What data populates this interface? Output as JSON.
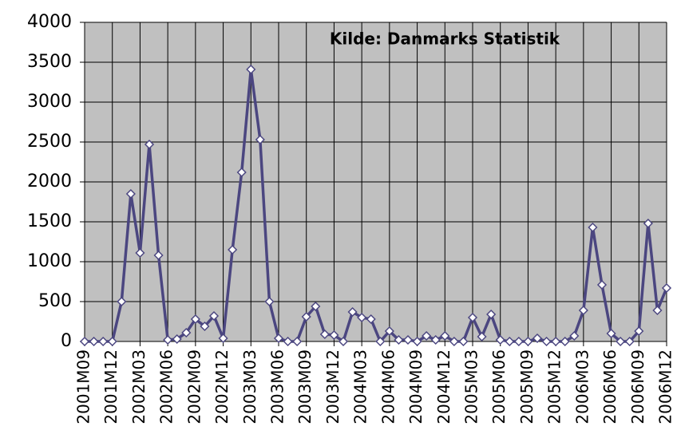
{
  "chart_data": {
    "type": "line",
    "annotation": "Kilde: Danmarks Statistik",
    "categories": [
      "2001M09",
      null,
      null,
      "2001M12",
      null,
      null,
      "2002M03",
      null,
      null,
      "2002M06",
      null,
      null,
      "2002M09",
      null,
      null,
      "2002M12",
      null,
      null,
      "2003M03",
      null,
      null,
      "2003M06",
      null,
      null,
      "2003M09",
      null,
      null,
      "2003M12",
      null,
      null,
      "2004M03",
      null,
      null,
      "2004M06",
      null,
      null,
      "2004M09",
      null,
      null,
      "2004M12",
      null,
      null,
      "2005M03",
      null,
      null,
      "2005M06",
      null,
      null,
      "2005M09",
      null,
      null,
      "2005M12",
      null,
      null,
      "2006M03",
      null,
      null,
      "2006M06",
      null,
      null,
      "2006M09",
      null,
      null,
      "2006M12"
    ],
    "series": [
      {
        "name": null,
        "color": "#4b4680",
        "values": [
          0,
          0,
          0,
          0,
          500,
          1850,
          1110,
          2470,
          1080,
          20,
          30,
          110,
          280,
          190,
          320,
          40,
          1150,
          2120,
          3410,
          2530,
          500,
          40,
          0,
          0,
          310,
          440,
          90,
          80,
          0,
          370,
          300,
          280,
          0,
          130,
          20,
          20,
          0,
          70,
          20,
          70,
          0,
          0,
          300,
          60,
          340,
          20,
          0,
          0,
          0,
          40,
          0,
          0,
          0,
          70,
          390,
          1430,
          710,
          100,
          0,
          0,
          130,
          1480,
          390,
          670
        ]
      }
    ],
    "ylim": [
      0,
      4000
    ],
    "yticks": [
      0,
      500,
      1000,
      1500,
      2000,
      2500,
      3000,
      3500,
      4000
    ],
    "grid": true,
    "plot_background": "#c0c0c0"
  }
}
